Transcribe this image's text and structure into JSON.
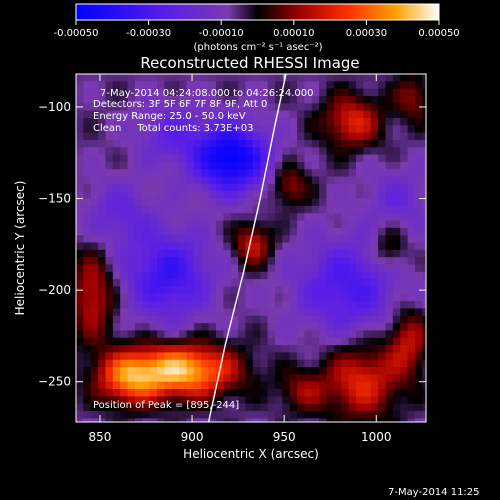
{
  "colorbar": {
    "ticks": [
      "-0.00050",
      "-0.00030",
      "-0.00010",
      "0.00010",
      "0.00030",
      "0.00050"
    ],
    "units": "(photons cm⁻² s⁻¹ asec⁻²)"
  },
  "title": "Reconstructed RHESSI Image",
  "info": {
    "time": "7-May-2014 04:24:08.000 to 04:26:24.000",
    "detectors": "Detectors: 3F 5F 6F 7F 8F 9F, Att 0",
    "energy": "Energy Range: 25.0 - 50.0 keV",
    "clean": "Clean     Total counts: 3.73E+03"
  },
  "peak_label": "Position of Peak = [895,-244]",
  "footer_timestamp": "7-May-2014 11:25",
  "colors": {
    "background": "#000000",
    "text": "#ffffff"
  },
  "chart_data": {
    "type": "heatmap",
    "title": "Reconstructed RHESSI Image",
    "xlabel": "Heliocentric X (arcsec)",
    "ylabel": "Heliocentric Y (arcsec)",
    "xlim": [
      837,
      1027
    ],
    "ylim": [
      -272,
      -82
    ],
    "xticks": [
      850,
      900,
      950,
      1000
    ],
    "yticks": [
      -100,
      -150,
      -200,
      -250
    ],
    "colorbar_range": [
      -0.0005,
      0.0005
    ],
    "peak": [
      895,
      -244
    ],
    "limb_curve": [
      [
        909,
        -272
      ],
      [
        918,
        -230
      ],
      [
        928,
        -190
      ],
      [
        937,
        -150
      ],
      [
        945,
        -110
      ],
      [
        951,
        -82
      ]
    ],
    "features": [
      {
        "kind": "negative",
        "x": 921,
        "y": -128,
        "sx": 14,
        "sy": 13,
        "amp": -0.00045
      },
      {
        "kind": "negative",
        "x": 887,
        "y": -192,
        "sx": 16,
        "sy": 17,
        "amp": -0.00028
      },
      {
        "kind": "negative",
        "x": 985,
        "y": -198,
        "sx": 20,
        "sy": 18,
        "amp": -0.00024
      },
      {
        "kind": "negative",
        "x": 888,
        "y": -115,
        "sx": 13,
        "sy": 12,
        "amp": -0.00015
      },
      {
        "kind": "negative",
        "x": 860,
        "y": -158,
        "sx": 13,
        "sy": 13,
        "amp": -0.00014
      },
      {
        "kind": "negative",
        "x": 1012,
        "y": -150,
        "sx": 13,
        "sy": 12,
        "amp": -0.00012
      },
      {
        "kind": "positive",
        "x": 895,
        "y": -244,
        "sx": 20,
        "sy": 10,
        "amp": 0.00048
      },
      {
        "kind": "positive",
        "x": 865,
        "y": -248,
        "sx": 12,
        "sy": 10,
        "amp": 0.00032
      },
      {
        "kind": "positive",
        "x": 992,
        "y": -250,
        "sx": 14,
        "sy": 14,
        "amp": 0.00027
      },
      {
        "kind": "positive",
        "x": 987,
        "y": -108,
        "sx": 11,
        "sy": 10,
        "amp": 0.00026
      },
      {
        "kind": "positive",
        "x": 933,
        "y": -175,
        "sx": 7,
        "sy": 8,
        "amp": 0.00024
      },
      {
        "kind": "positive",
        "x": 846,
        "y": -203,
        "sx": 8,
        "sy": 17,
        "amp": 0.00023
      },
      {
        "kind": "positive",
        "x": 1017,
        "y": -228,
        "sx": 8,
        "sy": 13,
        "amp": 0.00022
      },
      {
        "kind": "positive",
        "x": 953,
        "y": -143,
        "sx": 7,
        "sy": 8,
        "amp": 0.00018
      },
      {
        "kind": "positive",
        "x": 1007,
        "y": -178,
        "sx": 7,
        "sy": 9,
        "amp": 0.00015
      },
      {
        "kind": "positive",
        "x": 960,
        "y": -255,
        "sx": 9,
        "sy": 8,
        "amp": 0.00016
      },
      {
        "kind": "positive",
        "x": 1020,
        "y": -95,
        "sx": 7,
        "sy": 9,
        "amp": 0.00016
      }
    ],
    "background_level": -6e-05
  }
}
